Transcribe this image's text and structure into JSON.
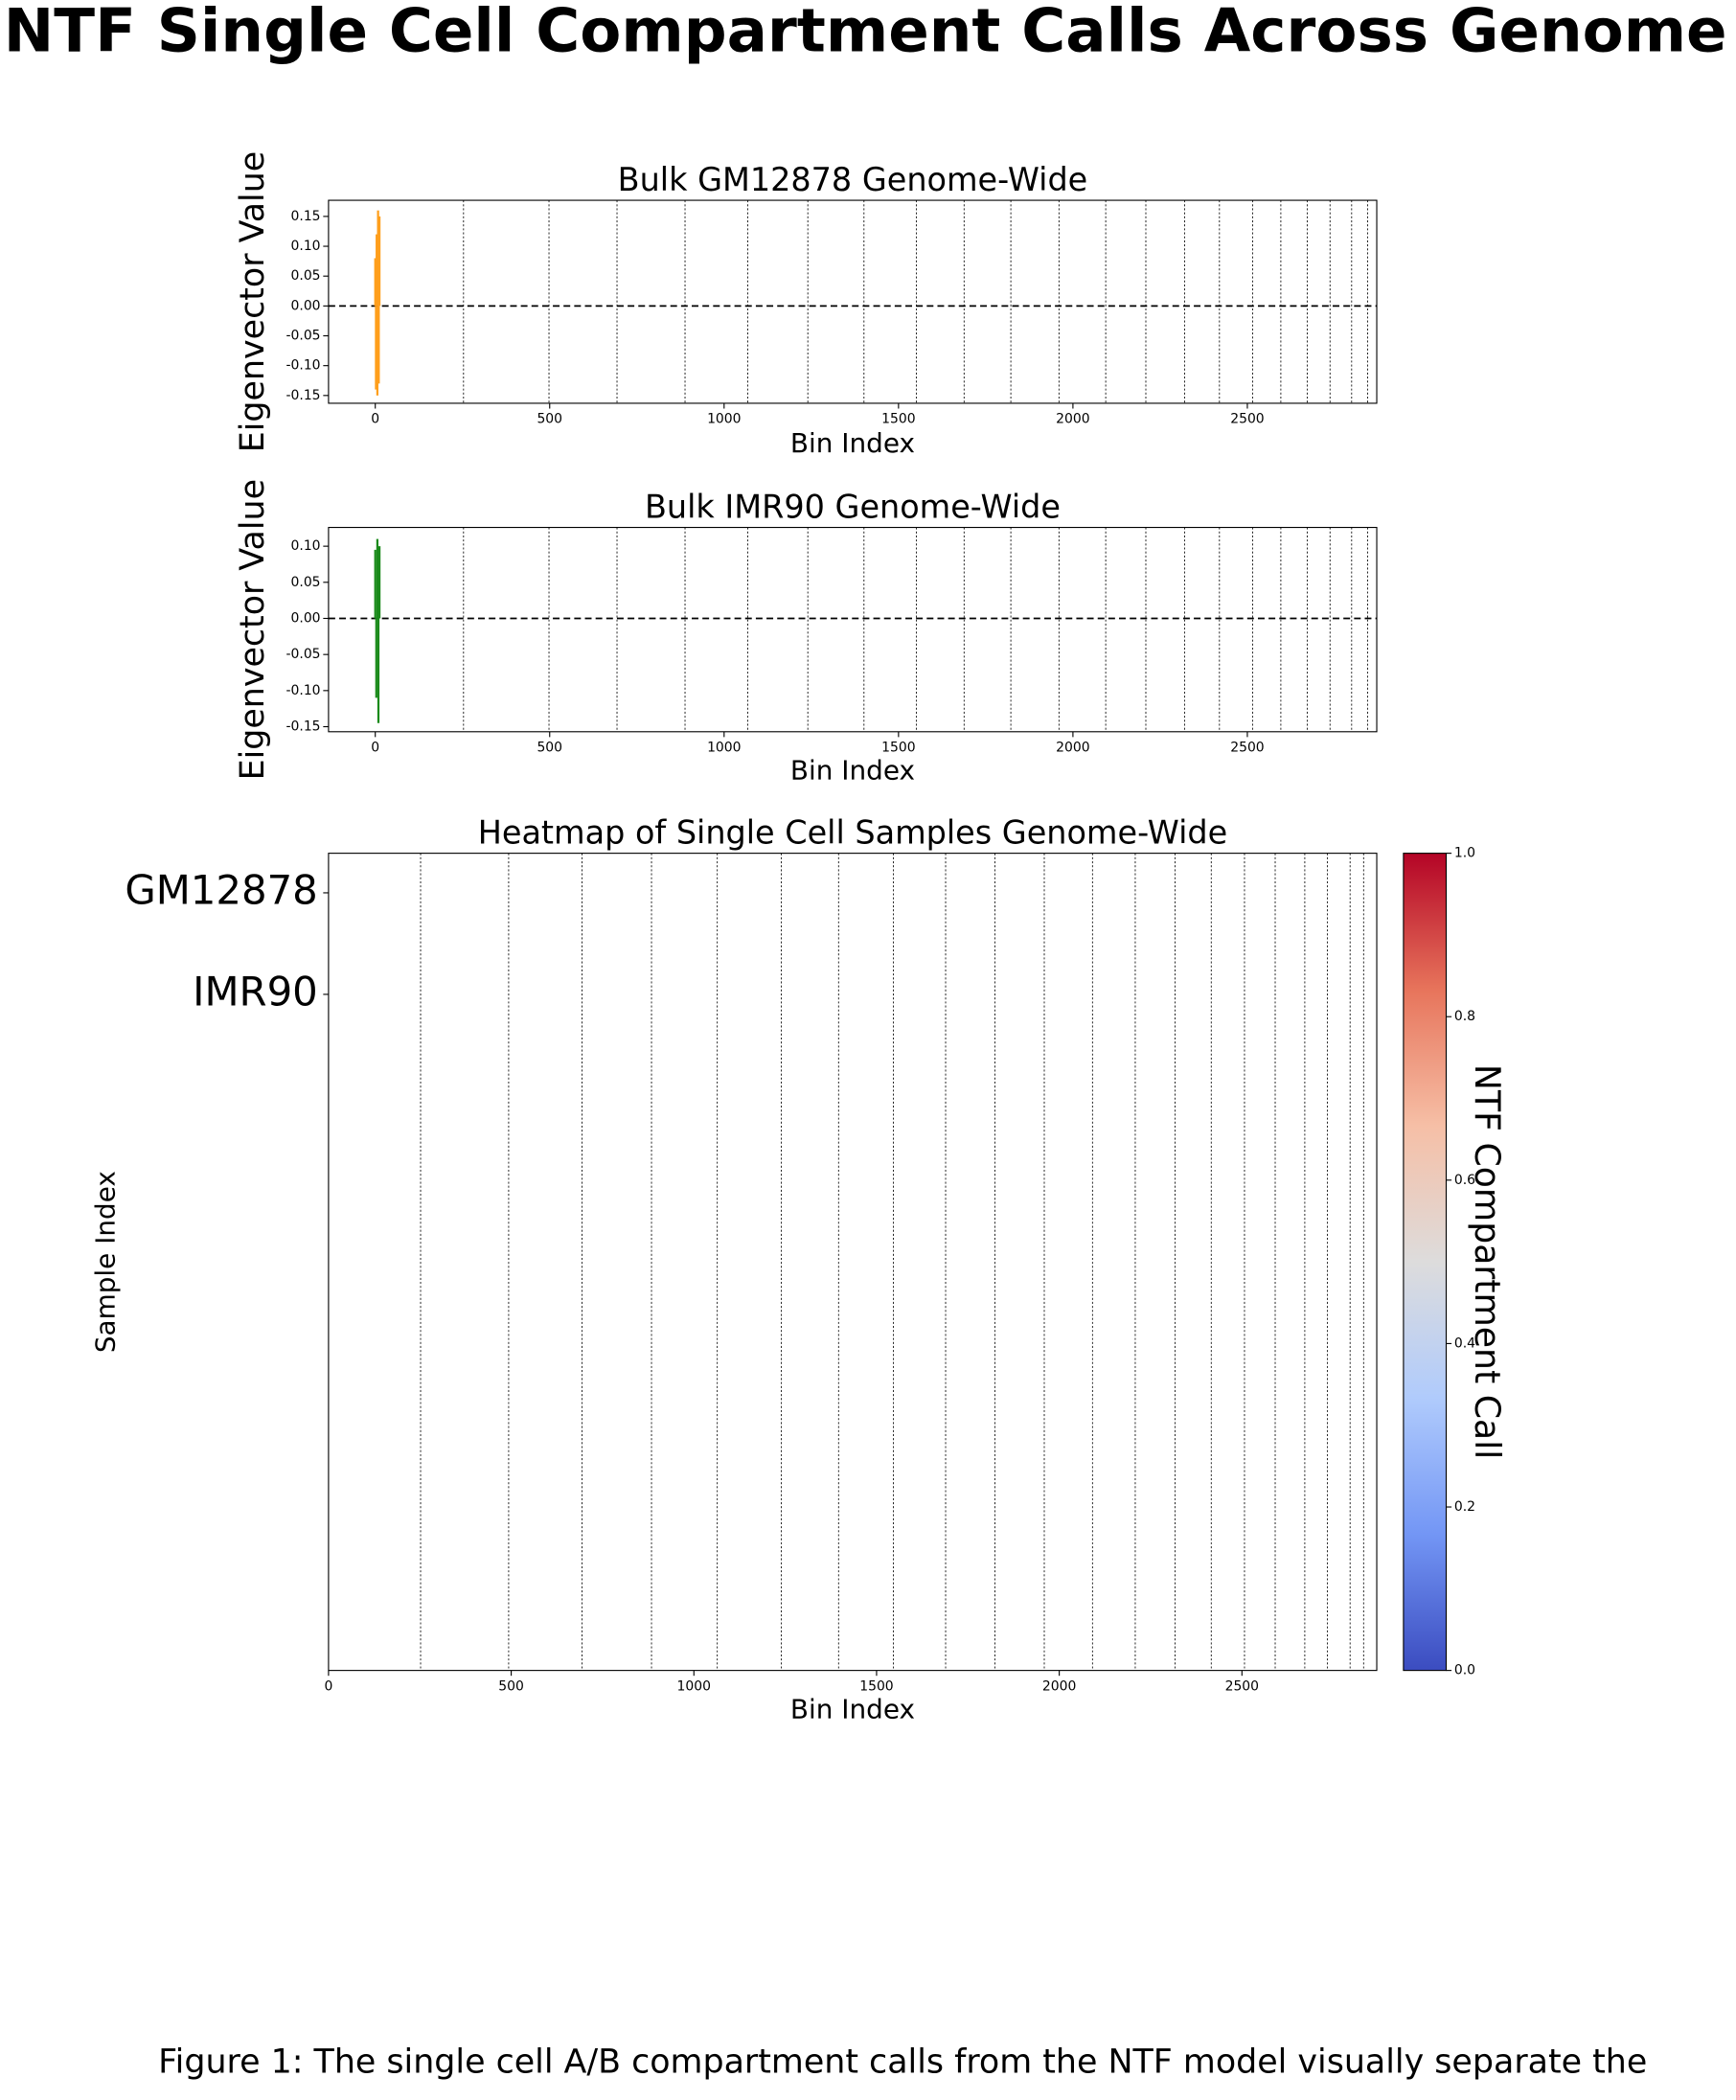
{
  "title": "NTF Single Cell Compartment Calls Across Genome",
  "caption": "Figure 1: The single cell A/B compartment calls from the NTF model visually separate the",
  "chart_data": [
    {
      "type": "bar",
      "title": "Bulk GM12878 Genome-Wide",
      "x_label": "Bin Index",
      "y_label": "Eigenvector Value",
      "color": "#ff9f1c",
      "x": [
        0,
        2,
        4,
        6,
        8,
        10,
        12
      ],
      "values": [
        0.08,
        -0.14,
        0.12,
        -0.15,
        0.16,
        -0.13,
        0.15
      ],
      "xlim": [
        -134,
        2871
      ],
      "xticks": [
        0,
        500,
        1000,
        1500,
        2000,
        2500
      ],
      "ylim": [
        -0.163,
        0.177
      ],
      "yticks": [
        {
          "value": -0.15,
          "label": "-0.15"
        },
        {
          "value": -0.1,
          "label": "-0.10"
        },
        {
          "value": -0.05,
          "label": "-0.05"
        },
        {
          "value": 0,
          "label": "0.00"
        },
        {
          "value": 0.05,
          "label": "0.05"
        },
        {
          "value": 0.1,
          "label": "0.10"
        },
        {
          "value": 0.15,
          "label": "0.15"
        }
      ],
      "hline": 0,
      "vlines": [
        253,
        498,
        693,
        888,
        1068,
        1240,
        1401,
        1551,
        1688,
        1822,
        1960,
        2094,
        2209,
        2320,
        2420,
        2515,
        2596,
        2672,
        2737,
        2799,
        2845
      ]
    },
    {
      "type": "bar",
      "title": "Bulk IMR90 Genome-Wide",
      "x_label": "Bin Index",
      "y_label": "Eigenvector Value",
      "color": "#1a8a1a",
      "x": [
        0,
        3,
        6,
        9,
        12
      ],
      "values": [
        0.095,
        -0.11,
        0.11,
        -0.145,
        0.1
      ],
      "xlim": [
        -134,
        2871
      ],
      "xticks": [
        0,
        500,
        1000,
        1500,
        2000,
        2500
      ],
      "ylim": [
        -0.157,
        0.126
      ],
      "yticks": [
        {
          "value": -0.15,
          "label": "-0.15"
        },
        {
          "value": -0.1,
          "label": "-0.10"
        },
        {
          "value": -0.05,
          "label": "-0.05"
        },
        {
          "value": 0,
          "label": "0.00"
        },
        {
          "value": 0.05,
          "label": "0.05"
        },
        {
          "value": 0.1,
          "label": "0.10"
        }
      ],
      "hline": 0,
      "vlines": [
        253,
        498,
        693,
        888,
        1068,
        1240,
        1401,
        1551,
        1688,
        1822,
        1960,
        2094,
        2209,
        2320,
        2420,
        2515,
        2596,
        2672,
        2737,
        2799,
        2845
      ]
    },
    {
      "type": "heatmap",
      "title": "Heatmap of Single Cell Samples Genome-Wide",
      "x_label": "Bin Index",
      "y_label": "Sample Index",
      "xlim": [
        0,
        2869
      ],
      "xticks": [
        0,
        500,
        1000,
        1500,
        2000,
        2500
      ],
      "ylim": [
        7.66,
        -0.39
      ],
      "yticks": [
        {
          "value": 0,
          "label": "GM12878"
        },
        {
          "value": 1,
          "label": "IMR90"
        }
      ],
      "vlines": [
        252,
        493,
        694,
        884,
        1064,
        1239,
        1396,
        1546,
        1689,
        1824,
        1959,
        2091,
        2208,
        2317,
        2416,
        2507,
        2591,
        2672,
        2734,
        2796,
        2833
      ],
      "colormap": [
        "#3b4cc0",
        "#7396f5",
        "#b0cbfc",
        "#dddcdc",
        "#f6bfa6",
        "#e7745b",
        "#b40426"
      ],
      "colorbar_label": "NTF Compartment Call",
      "clim": [
        0,
        1
      ],
      "cticks": [
        {
          "value": 0,
          "label": "0.0"
        },
        {
          "value": 0.2,
          "label": "0.2"
        },
        {
          "value": 0.4,
          "label": "0.4"
        },
        {
          "value": 0.6,
          "label": "0.6"
        },
        {
          "value": 0.8,
          "label": "0.8"
        },
        {
          "value": 1,
          "label": "1.0"
        }
      ]
    }
  ]
}
